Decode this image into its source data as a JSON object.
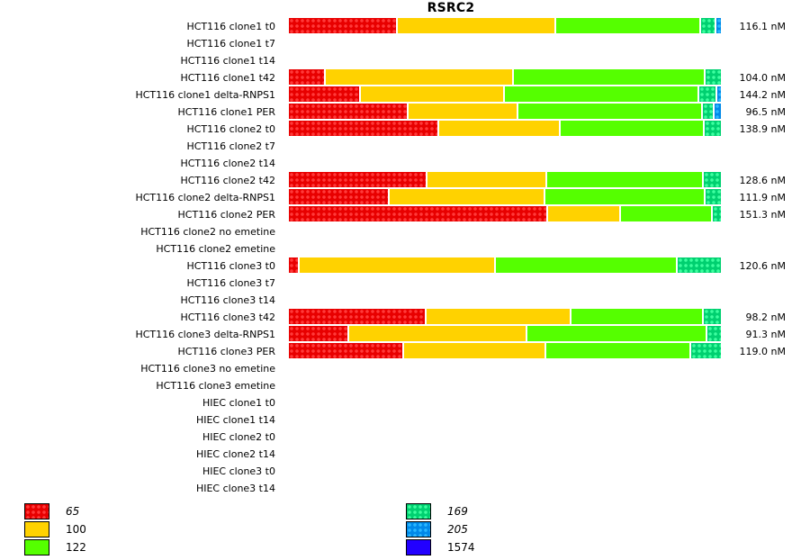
{
  "chart_data": {
    "type": "bar",
    "orientation": "horizontal",
    "stacked": "percent",
    "title": "RSRC2",
    "xlabel": "",
    "ylabel": "",
    "value_unit": "percent of bar",
    "categories": [
      "HCT116 clone1 t0",
      "HCT116 clone1 t7",
      "HCT116 clone1 t14",
      "HCT116 clone1 t42",
      "HCT116 clone1 delta-RNPS1",
      "HCT116 clone1 PER",
      "HCT116 clone2 t0",
      "HCT116 clone2 t7",
      "HCT116 clone2 t14",
      "HCT116 clone2 t42",
      "HCT116 clone2 delta-RNPS1",
      "HCT116 clone2 PER",
      "HCT116 clone2 no emetine",
      "HCT116 clone2 emetine",
      "HCT116 clone3 t0",
      "HCT116 clone3 t7",
      "HCT116 clone3 t14",
      "HCT116 clone3 t42",
      "HCT116 clone3 delta-RNPS1",
      "HCT116 clone3 PER",
      "HCT116 clone3 no emetine",
      "HCT116 clone3 emetine",
      "HIEC clone1 t0",
      "HIEC clone1 t14",
      "HIEC clone2 t0",
      "HIEC clone2 t14",
      "HIEC clone3 t0",
      "HIEC clone3 t14"
    ],
    "series": [
      {
        "name": "65",
        "color": "#e80000",
        "pattern": "dots",
        "italic": true,
        "values": [
          25.0,
          null,
          null,
          8.5,
          16.7,
          27.5,
          34.6,
          null,
          null,
          31.9,
          23.3,
          59.8,
          null,
          null,
          2.5,
          null,
          null,
          31.7,
          13.8,
          26.5,
          null,
          null,
          null,
          null,
          null,
          null,
          null,
          null
        ]
      },
      {
        "name": "100",
        "color": "#ffd200",
        "pattern": "solid",
        "italic": false,
        "values": [
          36.7,
          null,
          null,
          43.3,
          33.1,
          25.4,
          28.1,
          null,
          null,
          27.7,
          35.8,
          16.7,
          null,
          null,
          45.2,
          null,
          null,
          33.5,
          41.2,
          32.9,
          null,
          null,
          null,
          null,
          null,
          null,
          null,
          null
        ]
      },
      {
        "name": "122",
        "color": "#55ff00",
        "pattern": "solid",
        "italic": false,
        "values": [
          33.3,
          null,
          null,
          44.2,
          44.8,
          42.5,
          33.1,
          null,
          null,
          36.0,
          36.9,
          21.2,
          null,
          null,
          41.9,
          null,
          null,
          30.4,
          41.5,
          33.3,
          null,
          null,
          null,
          null,
          null,
          null,
          null,
          null
        ]
      },
      {
        "name": "169",
        "color": "#00d070",
        "pattern": "dots",
        "italic": true,
        "values": [
          3.5,
          null,
          null,
          4.0,
          4.2,
          2.7,
          4.2,
          null,
          null,
          4.4,
          4.0,
          2.3,
          null,
          null,
          10.4,
          null,
          null,
          4.4,
          3.5,
          7.3,
          null,
          null,
          null,
          null,
          null,
          null,
          null,
          null
        ]
      },
      {
        "name": "205",
        "color": "#0088e8",
        "pattern": "dots",
        "italic": true,
        "values": [
          1.5,
          null,
          null,
          0,
          1.2,
          1.9,
          0,
          null,
          null,
          0,
          0,
          0,
          null,
          null,
          0,
          null,
          null,
          0,
          0,
          0,
          null,
          null,
          null,
          null,
          null,
          null,
          null,
          null
        ]
      },
      {
        "name": "1574",
        "color": "#2200ff",
        "pattern": "solid",
        "italic": false,
        "values": [
          0,
          null,
          null,
          0,
          0,
          0,
          0,
          null,
          null,
          0,
          0,
          0,
          null,
          null,
          0,
          null,
          null,
          0,
          0,
          0,
          null,
          null,
          null,
          null,
          null,
          null,
          null,
          null
        ]
      }
    ],
    "row_totals": [
      "116.1 nM",
      "",
      "",
      "104.0 nM",
      "144.2 nM",
      "96.5 nM",
      "138.9 nM",
      "",
      "",
      "128.6 nM",
      "111.9 nM",
      "151.3 nM",
      "",
      "",
      "120.6 nM",
      "",
      "",
      "98.2 nM",
      "91.3 nM",
      "119.0 nM",
      "",
      "",
      "",
      "",
      "",
      "",
      "",
      ""
    ],
    "legend": {
      "placement": "bottom",
      "entries": [
        {
          "label": "65",
          "color": "#e80000",
          "pattern": "dots",
          "italic": true
        },
        {
          "label": "100",
          "color": "#ffd200",
          "pattern": "solid",
          "italic": false
        },
        {
          "label": "122",
          "color": "#55ff00",
          "pattern": "solid",
          "italic": false
        },
        {
          "label": "169",
          "color": "#00d070",
          "pattern": "dots",
          "italic": true
        },
        {
          "label": "205",
          "color": "#0088e8",
          "pattern": "dots",
          "italic": true
        },
        {
          "label": "1574",
          "color": "#2200ff",
          "pattern": "solid",
          "italic": false
        }
      ]
    },
    "grid": false
  }
}
